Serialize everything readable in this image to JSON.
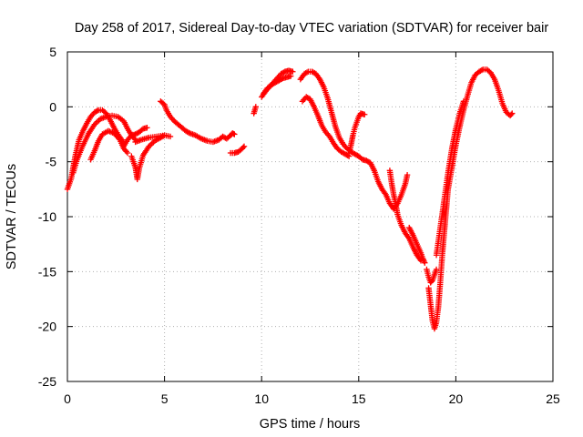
{
  "chart_data": {
    "type": "scatter",
    "title": "Day 258 of 2017, Sidereal Day-to-day VTEC variation (SDTVAR) for receiver bair",
    "xlabel": "GPS time / hours",
    "ylabel": "SDTVAR / TECUs",
    "xlim": [
      0,
      25
    ],
    "ylim": [
      -25,
      5
    ],
    "xticks": [
      0,
      5,
      10,
      15,
      20,
      25
    ],
    "yticks": [
      -25,
      -20,
      -15,
      -10,
      -5,
      0,
      5
    ],
    "xtick_labels": [
      "0",
      "5",
      "10",
      "15",
      "20",
      "25"
    ],
    "ytick_labels": [
      "-25",
      "-20",
      "-15",
      "-10",
      "-5",
      "0",
      "5"
    ],
    "grid": true,
    "marker": "plus",
    "color": "#ff0000",
    "series": [
      {
        "name": "arc-1",
        "points": [
          [
            0.0,
            -7.5
          ],
          [
            0.2,
            -6.5
          ],
          [
            0.4,
            -4.5
          ],
          [
            0.6,
            -3.0
          ],
          [
            0.8,
            -2.2
          ],
          [
            1.0,
            -1.5
          ],
          [
            1.2,
            -0.9
          ],
          [
            1.4,
            -0.5
          ],
          [
            1.6,
            -0.3
          ],
          [
            1.8,
            -0.3
          ],
          [
            2.0,
            -0.6
          ],
          [
            2.2,
            -1.2
          ],
          [
            2.4,
            -1.9
          ],
          [
            2.6,
            -2.5
          ],
          [
            2.8,
            -3.0
          ],
          [
            2.9,
            -3.3
          ]
        ]
      },
      {
        "name": "arc-2",
        "points": [
          [
            0.3,
            -6.0
          ],
          [
            0.5,
            -4.8
          ],
          [
            0.8,
            -3.5
          ],
          [
            1.1,
            -2.4
          ],
          [
            1.4,
            -1.6
          ],
          [
            1.7,
            -1.1
          ],
          [
            2.0,
            -0.9
          ],
          [
            2.3,
            -0.8
          ],
          [
            2.6,
            -0.9
          ],
          [
            2.9,
            -1.3
          ],
          [
            3.1,
            -2.0
          ],
          [
            3.3,
            -2.6
          ],
          [
            3.5,
            -3.0
          ]
        ]
      },
      {
        "name": "arc-3",
        "points": [
          [
            1.2,
            -4.8
          ],
          [
            1.4,
            -4.0
          ],
          [
            1.6,
            -3.1
          ],
          [
            1.8,
            -2.5
          ],
          [
            2.1,
            -2.2
          ],
          [
            2.4,
            -2.4
          ],
          [
            2.7,
            -3.0
          ],
          [
            2.9,
            -3.8
          ],
          [
            3.1,
            -4.2
          ]
        ]
      },
      {
        "name": "arc-4",
        "points": [
          [
            2.9,
            -3.6
          ],
          [
            3.1,
            -3.0
          ],
          [
            3.3,
            -2.6
          ],
          [
            3.5,
            -2.5
          ],
          [
            3.7,
            -2.3
          ],
          [
            3.9,
            -2.0
          ],
          [
            4.1,
            -1.9
          ]
        ]
      },
      {
        "name": "arc-5",
        "points": [
          [
            3.3,
            -4.5
          ],
          [
            3.5,
            -5.5
          ],
          [
            3.6,
            -6.6
          ],
          [
            3.7,
            -5.6
          ],
          [
            3.9,
            -4.4
          ],
          [
            4.2,
            -3.6
          ],
          [
            4.5,
            -3.1
          ],
          [
            4.8,
            -2.8
          ],
          [
            5.0,
            -2.6
          ],
          [
            5.3,
            -2.7
          ]
        ]
      },
      {
        "name": "arc-6",
        "points": [
          [
            3.5,
            -3.2
          ],
          [
            3.8,
            -3.0
          ],
          [
            4.2,
            -2.8
          ],
          [
            4.6,
            -2.7
          ],
          [
            5.0,
            -2.6
          ]
        ]
      },
      {
        "name": "arc-7",
        "points": [
          [
            4.8,
            0.5
          ],
          [
            5.0,
            0.2
          ],
          [
            5.1,
            -0.3
          ],
          [
            5.3,
            -0.9
          ],
          [
            5.5,
            -1.3
          ],
          [
            5.7,
            -1.6
          ],
          [
            5.9,
            -1.9
          ],
          [
            6.1,
            -2.2
          ],
          [
            6.3,
            -2.4
          ],
          [
            6.6,
            -2.6
          ],
          [
            6.9,
            -2.9
          ],
          [
            7.2,
            -3.1
          ],
          [
            7.5,
            -3.2
          ],
          [
            7.8,
            -3.0
          ],
          [
            8.0,
            -2.7
          ],
          [
            8.2,
            -2.9
          ],
          [
            8.4,
            -2.6
          ],
          [
            8.5,
            -2.4
          ],
          [
            8.6,
            -2.5
          ]
        ]
      },
      {
        "name": "arc-8",
        "points": [
          [
            8.4,
            -4.2
          ],
          [
            8.6,
            -4.2
          ],
          [
            8.8,
            -4.1
          ],
          [
            9.0,
            -3.8
          ],
          [
            9.1,
            -3.6
          ]
        ]
      },
      {
        "name": "arc-9",
        "points": [
          [
            9.6,
            -0.6
          ],
          [
            9.7,
            0.0
          ]
        ]
      },
      {
        "name": "arc-10",
        "points": [
          [
            10.0,
            0.9
          ],
          [
            10.2,
            1.4
          ],
          [
            10.4,
            1.8
          ],
          [
            10.6,
            2.2
          ],
          [
            10.8,
            2.6
          ],
          [
            11.0,
            3.0
          ],
          [
            11.2,
            3.2
          ],
          [
            11.4,
            3.3
          ],
          [
            11.6,
            3.2
          ]
        ]
      },
      {
        "name": "arc-11",
        "points": [
          [
            10.1,
            1.2
          ],
          [
            10.3,
            1.7
          ],
          [
            10.5,
            2.0
          ],
          [
            10.7,
            2.2
          ],
          [
            10.9,
            2.4
          ],
          [
            11.1,
            2.6
          ],
          [
            11.3,
            2.7
          ],
          [
            11.5,
            2.8
          ]
        ]
      },
      {
        "name": "arc-12",
        "points": [
          [
            12.0,
            2.5
          ],
          [
            12.2,
            3.0
          ],
          [
            12.4,
            3.2
          ],
          [
            12.6,
            3.2
          ],
          [
            12.8,
            3.0
          ],
          [
            13.0,
            2.5
          ],
          [
            13.2,
            1.8
          ],
          [
            13.4,
            0.8
          ],
          [
            13.6,
            -0.5
          ],
          [
            13.8,
            -1.8
          ],
          [
            14.0,
            -2.8
          ],
          [
            14.2,
            -3.4
          ],
          [
            14.4,
            -3.8
          ],
          [
            14.6,
            -4.1
          ],
          [
            14.8,
            -4.3
          ],
          [
            15.0,
            -4.5
          ],
          [
            15.2,
            -4.8
          ],
          [
            15.4,
            -4.9
          ],
          [
            15.6,
            -5.1
          ],
          [
            15.8,
            -5.8
          ],
          [
            16.0,
            -6.8
          ],
          [
            16.2,
            -7.5
          ],
          [
            16.4,
            -8.0
          ],
          [
            16.6,
            -8.8
          ],
          [
            16.8,
            -9.3
          ],
          [
            17.0,
            -8.8
          ],
          [
            17.2,
            -8.0
          ],
          [
            17.4,
            -7.0
          ],
          [
            17.5,
            -6.2
          ]
        ]
      },
      {
        "name": "arc-13",
        "points": [
          [
            12.1,
            0.5
          ],
          [
            12.3,
            0.9
          ],
          [
            12.5,
            0.7
          ],
          [
            12.7,
            0.0
          ],
          [
            12.9,
            -0.8
          ],
          [
            13.1,
            -1.7
          ],
          [
            13.3,
            -2.3
          ],
          [
            13.5,
            -2.7
          ],
          [
            13.7,
            -3.3
          ],
          [
            13.9,
            -3.8
          ],
          [
            14.1,
            -4.1
          ],
          [
            14.3,
            -4.3
          ],
          [
            14.5,
            -4.5
          ]
        ]
      },
      {
        "name": "arc-14",
        "points": [
          [
            14.5,
            -4.2
          ],
          [
            14.6,
            -3.5
          ],
          [
            14.7,
            -2.6
          ],
          [
            14.8,
            -1.9
          ],
          [
            14.9,
            -1.4
          ],
          [
            15.0,
            -0.9
          ],
          [
            15.1,
            -0.6
          ],
          [
            15.3,
            -0.7
          ]
        ]
      },
      {
        "name": "arc-15",
        "points": [
          [
            16.6,
            -5.8
          ],
          [
            16.7,
            -7.0
          ],
          [
            16.8,
            -8.0
          ],
          [
            16.9,
            -8.8
          ],
          [
            17.0,
            -9.8
          ],
          [
            17.2,
            -10.8
          ],
          [
            17.4,
            -11.5
          ],
          [
            17.6,
            -12.0
          ],
          [
            17.8,
            -12.8
          ],
          [
            18.0,
            -13.5
          ],
          [
            18.2,
            -14.0
          ]
        ]
      },
      {
        "name": "arc-16",
        "points": [
          [
            17.6,
            -11.0
          ],
          [
            17.8,
            -11.7
          ],
          [
            18.0,
            -12.5
          ],
          [
            18.2,
            -13.3
          ],
          [
            18.3,
            -13.8
          ],
          [
            18.4,
            -14.2
          ]
        ]
      },
      {
        "name": "arc-17",
        "points": [
          [
            18.5,
            -14.8
          ],
          [
            18.6,
            -15.5
          ],
          [
            18.7,
            -16.0
          ],
          [
            18.8,
            -15.8
          ],
          [
            18.9,
            -15.3
          ],
          [
            19.0,
            -14.8
          ]
        ]
      },
      {
        "name": "arc-18",
        "points": [
          [
            18.6,
            -16.5
          ],
          [
            18.7,
            -18.0
          ],
          [
            18.8,
            -19.5
          ],
          [
            18.9,
            -20.2
          ],
          [
            19.0,
            -19.6
          ],
          [
            19.1,
            -18.2
          ],
          [
            19.2,
            -16.0
          ],
          [
            19.3,
            -13.5
          ],
          [
            19.4,
            -11.5
          ],
          [
            19.5,
            -9.5
          ],
          [
            19.6,
            -7.5
          ],
          [
            19.8,
            -5.5
          ],
          [
            20.0,
            -3.5
          ],
          [
            20.2,
            -1.8
          ],
          [
            20.4,
            -0.3
          ],
          [
            20.6,
            1.0
          ],
          [
            20.8,
            2.2
          ],
          [
            21.0,
            2.9
          ],
          [
            21.2,
            3.2
          ],
          [
            21.4,
            3.4
          ],
          [
            21.6,
            3.4
          ],
          [
            21.8,
            3.1
          ],
          [
            22.0,
            2.5
          ],
          [
            22.2,
            1.5
          ],
          [
            22.4,
            0.3
          ],
          [
            22.6,
            -0.5
          ],
          [
            22.8,
            -0.8
          ],
          [
            22.9,
            -0.6
          ]
        ]
      },
      {
        "name": "arc-19",
        "points": [
          [
            19.0,
            -13.5
          ],
          [
            19.2,
            -11.0
          ],
          [
            19.4,
            -8.5
          ],
          [
            19.6,
            -6.0
          ],
          [
            19.8,
            -3.8
          ],
          [
            20.0,
            -2.0
          ],
          [
            20.2,
            -0.6
          ],
          [
            20.4,
            0.5
          ]
        ]
      }
    ]
  }
}
